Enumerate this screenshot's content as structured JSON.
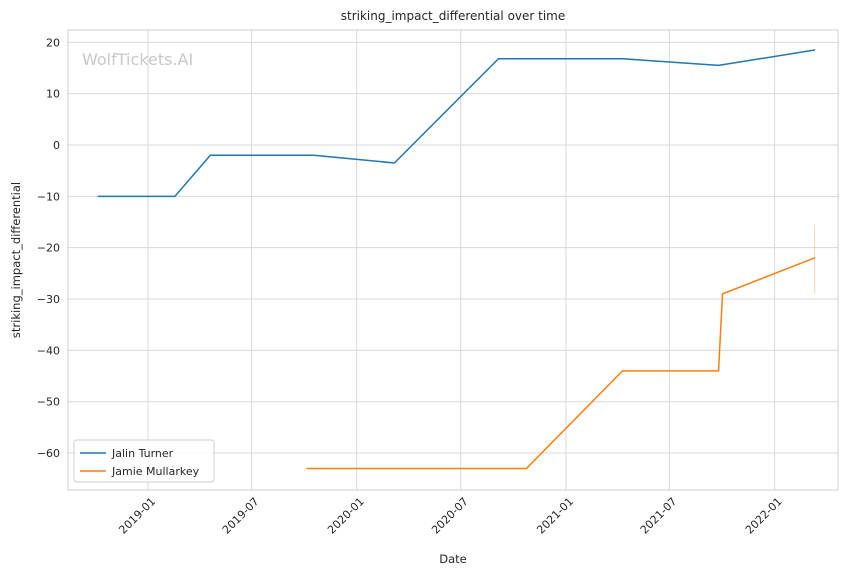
{
  "chart_data": {
    "type": "line",
    "title": "striking_impact_differential over time",
    "xlabel": "Date",
    "ylabel": "striking_impact_differential",
    "watermark": "WolfTickets.AI",
    "xlim": [
      "2018-08-14",
      "2022-04-22"
    ],
    "ylim": [
      -67.2,
      22.4
    ],
    "x_ticks": [
      "2019-01-01",
      "2019-07-01",
      "2020-01-01",
      "2020-07-01",
      "2021-01-01",
      "2021-07-01",
      "2022-01-01"
    ],
    "x_tick_labels": [
      "2019-01",
      "2019-07",
      "2020-01",
      "2020-07",
      "2021-01",
      "2021-07",
      "2022-01"
    ],
    "y_ticks": [
      -60,
      -50,
      -40,
      -30,
      -20,
      -10,
      0,
      10,
      20
    ],
    "y_tick_labels": [
      "−60",
      "−50",
      "−40",
      "−30",
      "−20",
      "−10",
      "0",
      "10",
      "20"
    ],
    "grid": true,
    "legend_position": "lower-left",
    "series": [
      {
        "name": "Jalin Turner",
        "color": "#1f77b4",
        "points": [
          {
            "x": "2018-10-06",
            "y": -10
          },
          {
            "x": "2019-02-17",
            "y": -10
          },
          {
            "x": "2019-04-20",
            "y": -2
          },
          {
            "x": "2019-10-18",
            "y": -2
          },
          {
            "x": "2020-03-07",
            "y": -3.5
          },
          {
            "x": "2020-09-05",
            "y": 16.8
          },
          {
            "x": "2021-04-10",
            "y": 16.8
          },
          {
            "x": "2021-09-25",
            "y": 15.5
          },
          {
            "x": "2022-03-12",
            "y": 18.5
          }
        ]
      },
      {
        "name": "Jamie Mullarkey",
        "color": "#ff7f0e",
        "points": [
          {
            "x": "2019-10-06",
            "y": -63
          },
          {
            "x": "2020-10-24",
            "y": -63
          },
          {
            "x": "2021-04-10",
            "y": -44
          },
          {
            "x": "2021-09-25",
            "y": -44
          },
          {
            "x": "2021-10-02",
            "y": -29
          },
          {
            "x": "2022-03-12",
            "y": -22
          }
        ],
        "error_bar": {
          "x": "2022-03-12",
          "low": -29,
          "high": -15.5
        }
      }
    ]
  }
}
